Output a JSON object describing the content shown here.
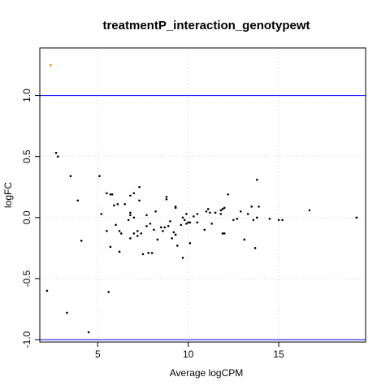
{
  "chart_data": {
    "type": "scatter",
    "title": "treatmentP_interaction_genotypewt",
    "xlabel": "Average logCPM",
    "ylabel": "logFC",
    "xlim": [
      1.8,
      19.8
    ],
    "ylim": [
      -1.02,
      1.39
    ],
    "x_ticks": [
      5,
      10,
      15
    ],
    "y_ticks": [
      -1.0,
      -0.5,
      0.0,
      0.5,
      1.0
    ],
    "y_tick_labels": [
      "-1.0",
      "-0.5",
      "0.0",
      "0.5",
      "1.0"
    ],
    "grid": "dotted",
    "hlines": [
      1.0,
      -1.0
    ],
    "hline_color": "#0000ff",
    "point_color": "#000000",
    "highlight_color": "#ff7f00",
    "series": [
      {
        "color": "#ff7f00",
        "points": [
          [
            2.4,
            1.25
          ]
        ]
      },
      {
        "color": "#000000",
        "points": [
          [
            2.2,
            -0.6
          ],
          [
            2.7,
            0.53
          ],
          [
            2.8,
            0.5
          ],
          [
            3.3,
            -0.78
          ],
          [
            3.5,
            0.34
          ],
          [
            3.9,
            0.14
          ],
          [
            4.1,
            -0.19
          ],
          [
            4.5,
            -0.94
          ],
          [
            5.1,
            0.34
          ],
          [
            5.2,
            0.03
          ],
          [
            5.5,
            0.2
          ],
          [
            5.5,
            -0.11
          ],
          [
            5.6,
            -0.61
          ],
          [
            5.7,
            0.19
          ],
          [
            5.7,
            -0.24
          ],
          [
            5.8,
            0.19
          ],
          [
            5.9,
            0.1
          ],
          [
            6.0,
            -0.06
          ],
          [
            6.1,
            0.11
          ],
          [
            6.2,
            -0.11
          ],
          [
            6.2,
            -0.28
          ],
          [
            6.3,
            -0.13
          ],
          [
            6.5,
            0.11
          ],
          [
            6.7,
            -0.02
          ],
          [
            6.8,
            0.04
          ],
          [
            6.8,
            0.02
          ],
          [
            6.8,
            -0.17
          ],
          [
            6.8,
            0.18
          ],
          [
            7.0,
            -0.13
          ],
          [
            7.0,
            0.2
          ],
          [
            7.0,
            0.0
          ],
          [
            7.2,
            -0.11
          ],
          [
            7.2,
            -0.15
          ],
          [
            7.3,
            0.14
          ],
          [
            7.3,
            0.25
          ],
          [
            7.4,
            -0.13
          ],
          [
            7.5,
            -0.3
          ],
          [
            7.7,
            0.02
          ],
          [
            7.7,
            -0.07
          ],
          [
            7.8,
            -0.29
          ],
          [
            7.9,
            -0.05
          ],
          [
            8.0,
            -0.29
          ],
          [
            8.1,
            -0.1
          ],
          [
            8.2,
            0.05
          ],
          [
            8.3,
            -0.18
          ],
          [
            8.5,
            -0.08
          ],
          [
            8.6,
            -0.11
          ],
          [
            8.7,
            -0.08
          ],
          [
            8.8,
            0.15
          ],
          [
            8.8,
            0.17
          ],
          [
            8.9,
            -0.07
          ],
          [
            9.0,
            -0.03
          ],
          [
            9.1,
            -0.17
          ],
          [
            9.2,
            -0.12
          ],
          [
            9.3,
            0.09
          ],
          [
            9.3,
            -0.14
          ],
          [
            9.3,
            0.08
          ],
          [
            9.4,
            -0.23
          ],
          [
            9.6,
            -0.06
          ],
          [
            9.7,
            0.0
          ],
          [
            9.7,
            -0.33
          ],
          [
            9.8,
            -0.02
          ],
          [
            9.9,
            -0.05
          ],
          [
            9.9,
            0.03
          ],
          [
            10.0,
            -0.04
          ],
          [
            10.1,
            -0.21
          ],
          [
            10.1,
            -0.04
          ],
          [
            10.3,
            0.01
          ],
          [
            10.5,
            -0.04
          ],
          [
            10.5,
            0.03
          ],
          [
            10.9,
            -0.1
          ],
          [
            11.0,
            0.05
          ],
          [
            11.1,
            0.07
          ],
          [
            11.2,
            0.04
          ],
          [
            11.3,
            -0.05
          ],
          [
            11.5,
            0.04
          ],
          [
            11.8,
            0.03
          ],
          [
            11.8,
            0.06
          ],
          [
            11.9,
            -0.13
          ],
          [
            11.9,
            0.07
          ],
          [
            12.0,
            -0.13
          ],
          [
            12.0,
            0.08
          ],
          [
            12.2,
            0.19
          ],
          [
            12.5,
            -0.02
          ],
          [
            12.7,
            -0.01
          ],
          [
            12.9,
            0.05
          ],
          [
            13.1,
            -0.18
          ],
          [
            13.3,
            0.03
          ],
          [
            13.5,
            0.09
          ],
          [
            13.6,
            -0.02
          ],
          [
            13.7,
            -0.25
          ],
          [
            13.8,
            0.31
          ],
          [
            13.8,
            0.0
          ],
          [
            13.9,
            0.09
          ],
          [
            14.5,
            -0.01
          ],
          [
            15.0,
            -0.02
          ],
          [
            15.2,
            -0.02
          ],
          [
            16.7,
            0.06
          ],
          [
            19.3,
            0.0
          ]
        ]
      }
    ]
  }
}
